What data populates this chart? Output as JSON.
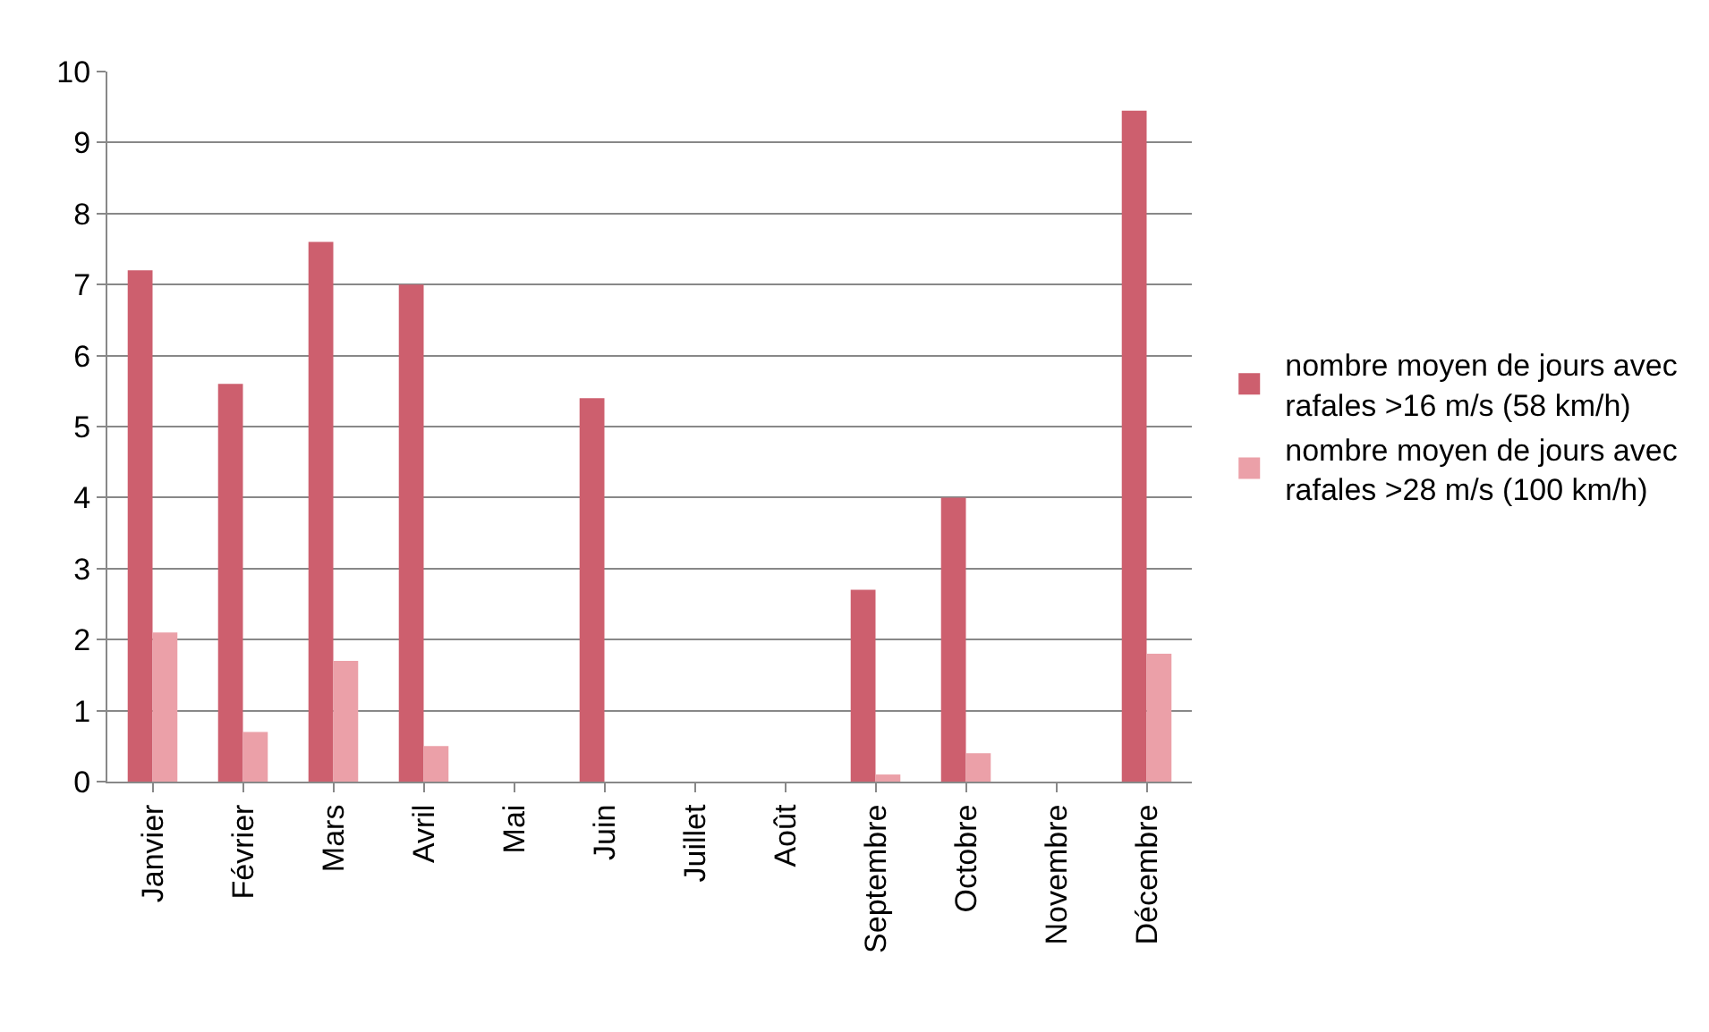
{
  "chart_data": {
    "type": "bar",
    "categories": [
      "Janvier",
      "Février",
      "Mars",
      "Avril",
      "Mai",
      "Juin",
      "Juillet",
      "Août",
      "Septembre",
      "Octobre",
      "Novembre",
      "Décembre"
    ],
    "series": [
      {
        "name": "nombre moyen de jours avec rafales >16 m/s (58 km/h)",
        "color": "#cd5f6e",
        "values": [
          7.2,
          5.6,
          7.6,
          7.0,
          0,
          5.4,
          0,
          0,
          2.7,
          4.0,
          0,
          9.45
        ]
      },
      {
        "name": "nombre moyen de jours avec rafales >28 m/s (100 km/h)",
        "color": "#eba0a8",
        "values": [
          2.1,
          0.7,
          1.7,
          0.5,
          0,
          0,
          0,
          0,
          0.1,
          0.4,
          0,
          1.8
        ]
      }
    ],
    "ylim": [
      0,
      10
    ],
    "yticks": [
      0,
      1,
      2,
      3,
      4,
      5,
      6,
      7,
      8,
      9,
      10
    ],
    "grid": "y",
    "legend": "right"
  }
}
